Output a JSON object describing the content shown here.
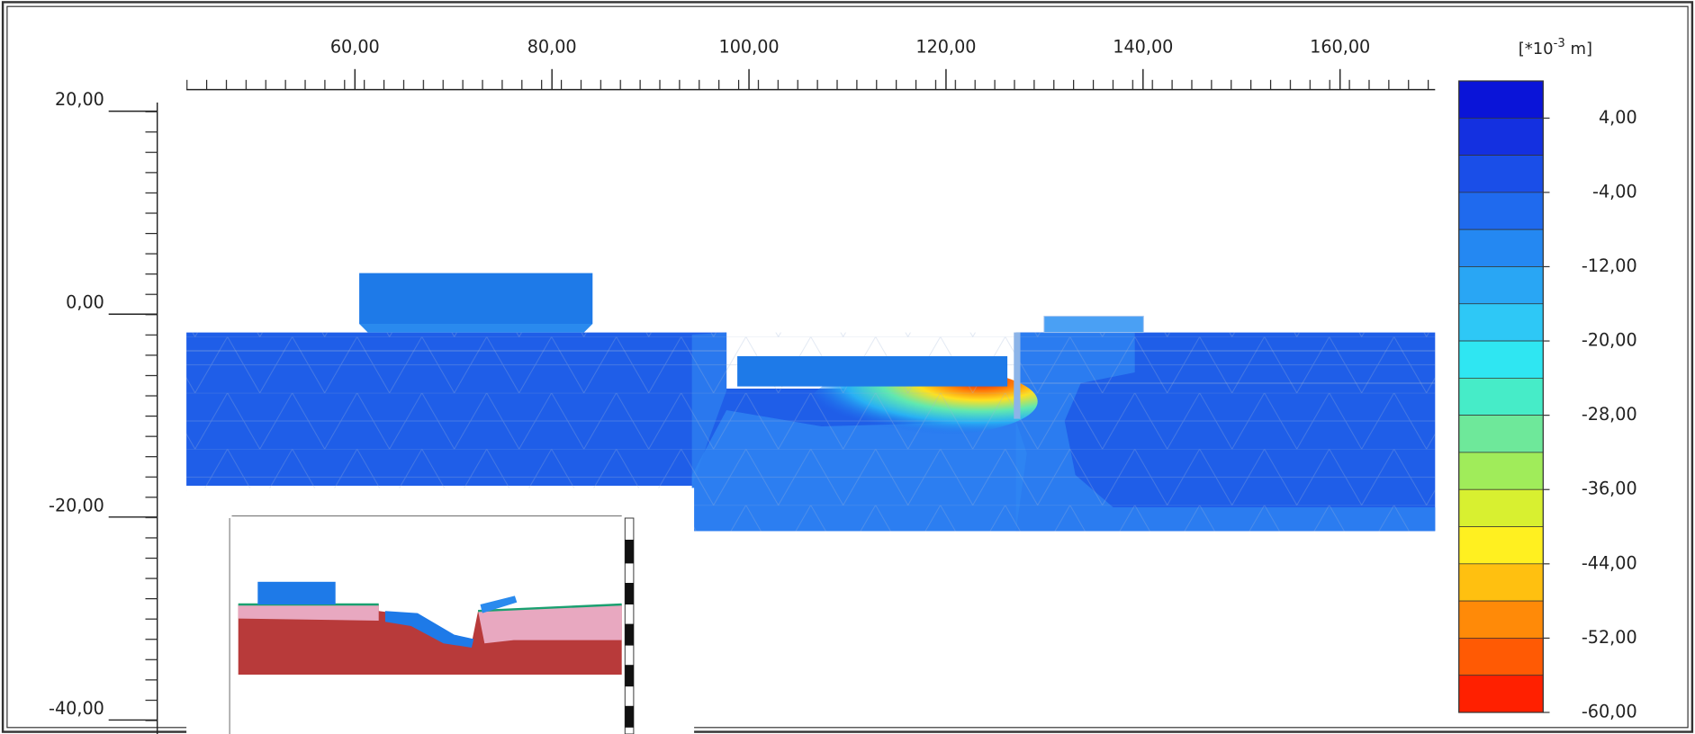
{
  "chart_data": {
    "type": "contour",
    "xlim": [
      43,
      170
    ],
    "xticks": [
      {
        "value": 60,
        "label": "60,00"
      },
      {
        "value": 80,
        "label": "80,00"
      },
      {
        "value": 100,
        "label": "100,00"
      },
      {
        "value": 120,
        "label": "120,00"
      },
      {
        "value": 140,
        "label": "140,00"
      },
      {
        "value": 160,
        "label": "160,00"
      }
    ],
    "ylim": [
      -41.4,
      20.8
    ],
    "yticks": [
      {
        "value": 20,
        "label": "20,00"
      },
      {
        "value": 0,
        "label": "0,00"
      },
      {
        "value": -20,
        "label": "-20,00"
      },
      {
        "value": -40,
        "label": "-40,00"
      }
    ],
    "colorbar": {
      "unit": {
        "base": "[*10",
        "sup": "-3",
        "rest": " m]"
      },
      "clim": [
        -60,
        8
      ],
      "ticks": [
        {
          "value": 4,
          "label": "4,00"
        },
        {
          "value": -4,
          "label": "-4,00"
        },
        {
          "value": -12,
          "label": "-12,00"
        },
        {
          "value": -20,
          "label": "-20,00"
        },
        {
          "value": -28,
          "label": "-28,00"
        },
        {
          "value": -36,
          "label": "-36,00"
        },
        {
          "value": -44,
          "label": "-44,00"
        },
        {
          "value": -52,
          "label": "-52,00"
        },
        {
          "value": -60,
          "label": "-60,00"
        }
      ],
      "colors": [
        "#0a14d8",
        "#1430e0",
        "#1a4ee8",
        "#1f6aee",
        "#2488f2",
        "#29a6f4",
        "#2ec8f6",
        "#2fe6f2",
        "#46ecc8",
        "#6ee89a",
        "#a0ec5a",
        "#d8f030",
        "#fff020",
        "#ffc010",
        "#ff8a08",
        "#ff5a04",
        "#ff2000"
      ]
    }
  }
}
